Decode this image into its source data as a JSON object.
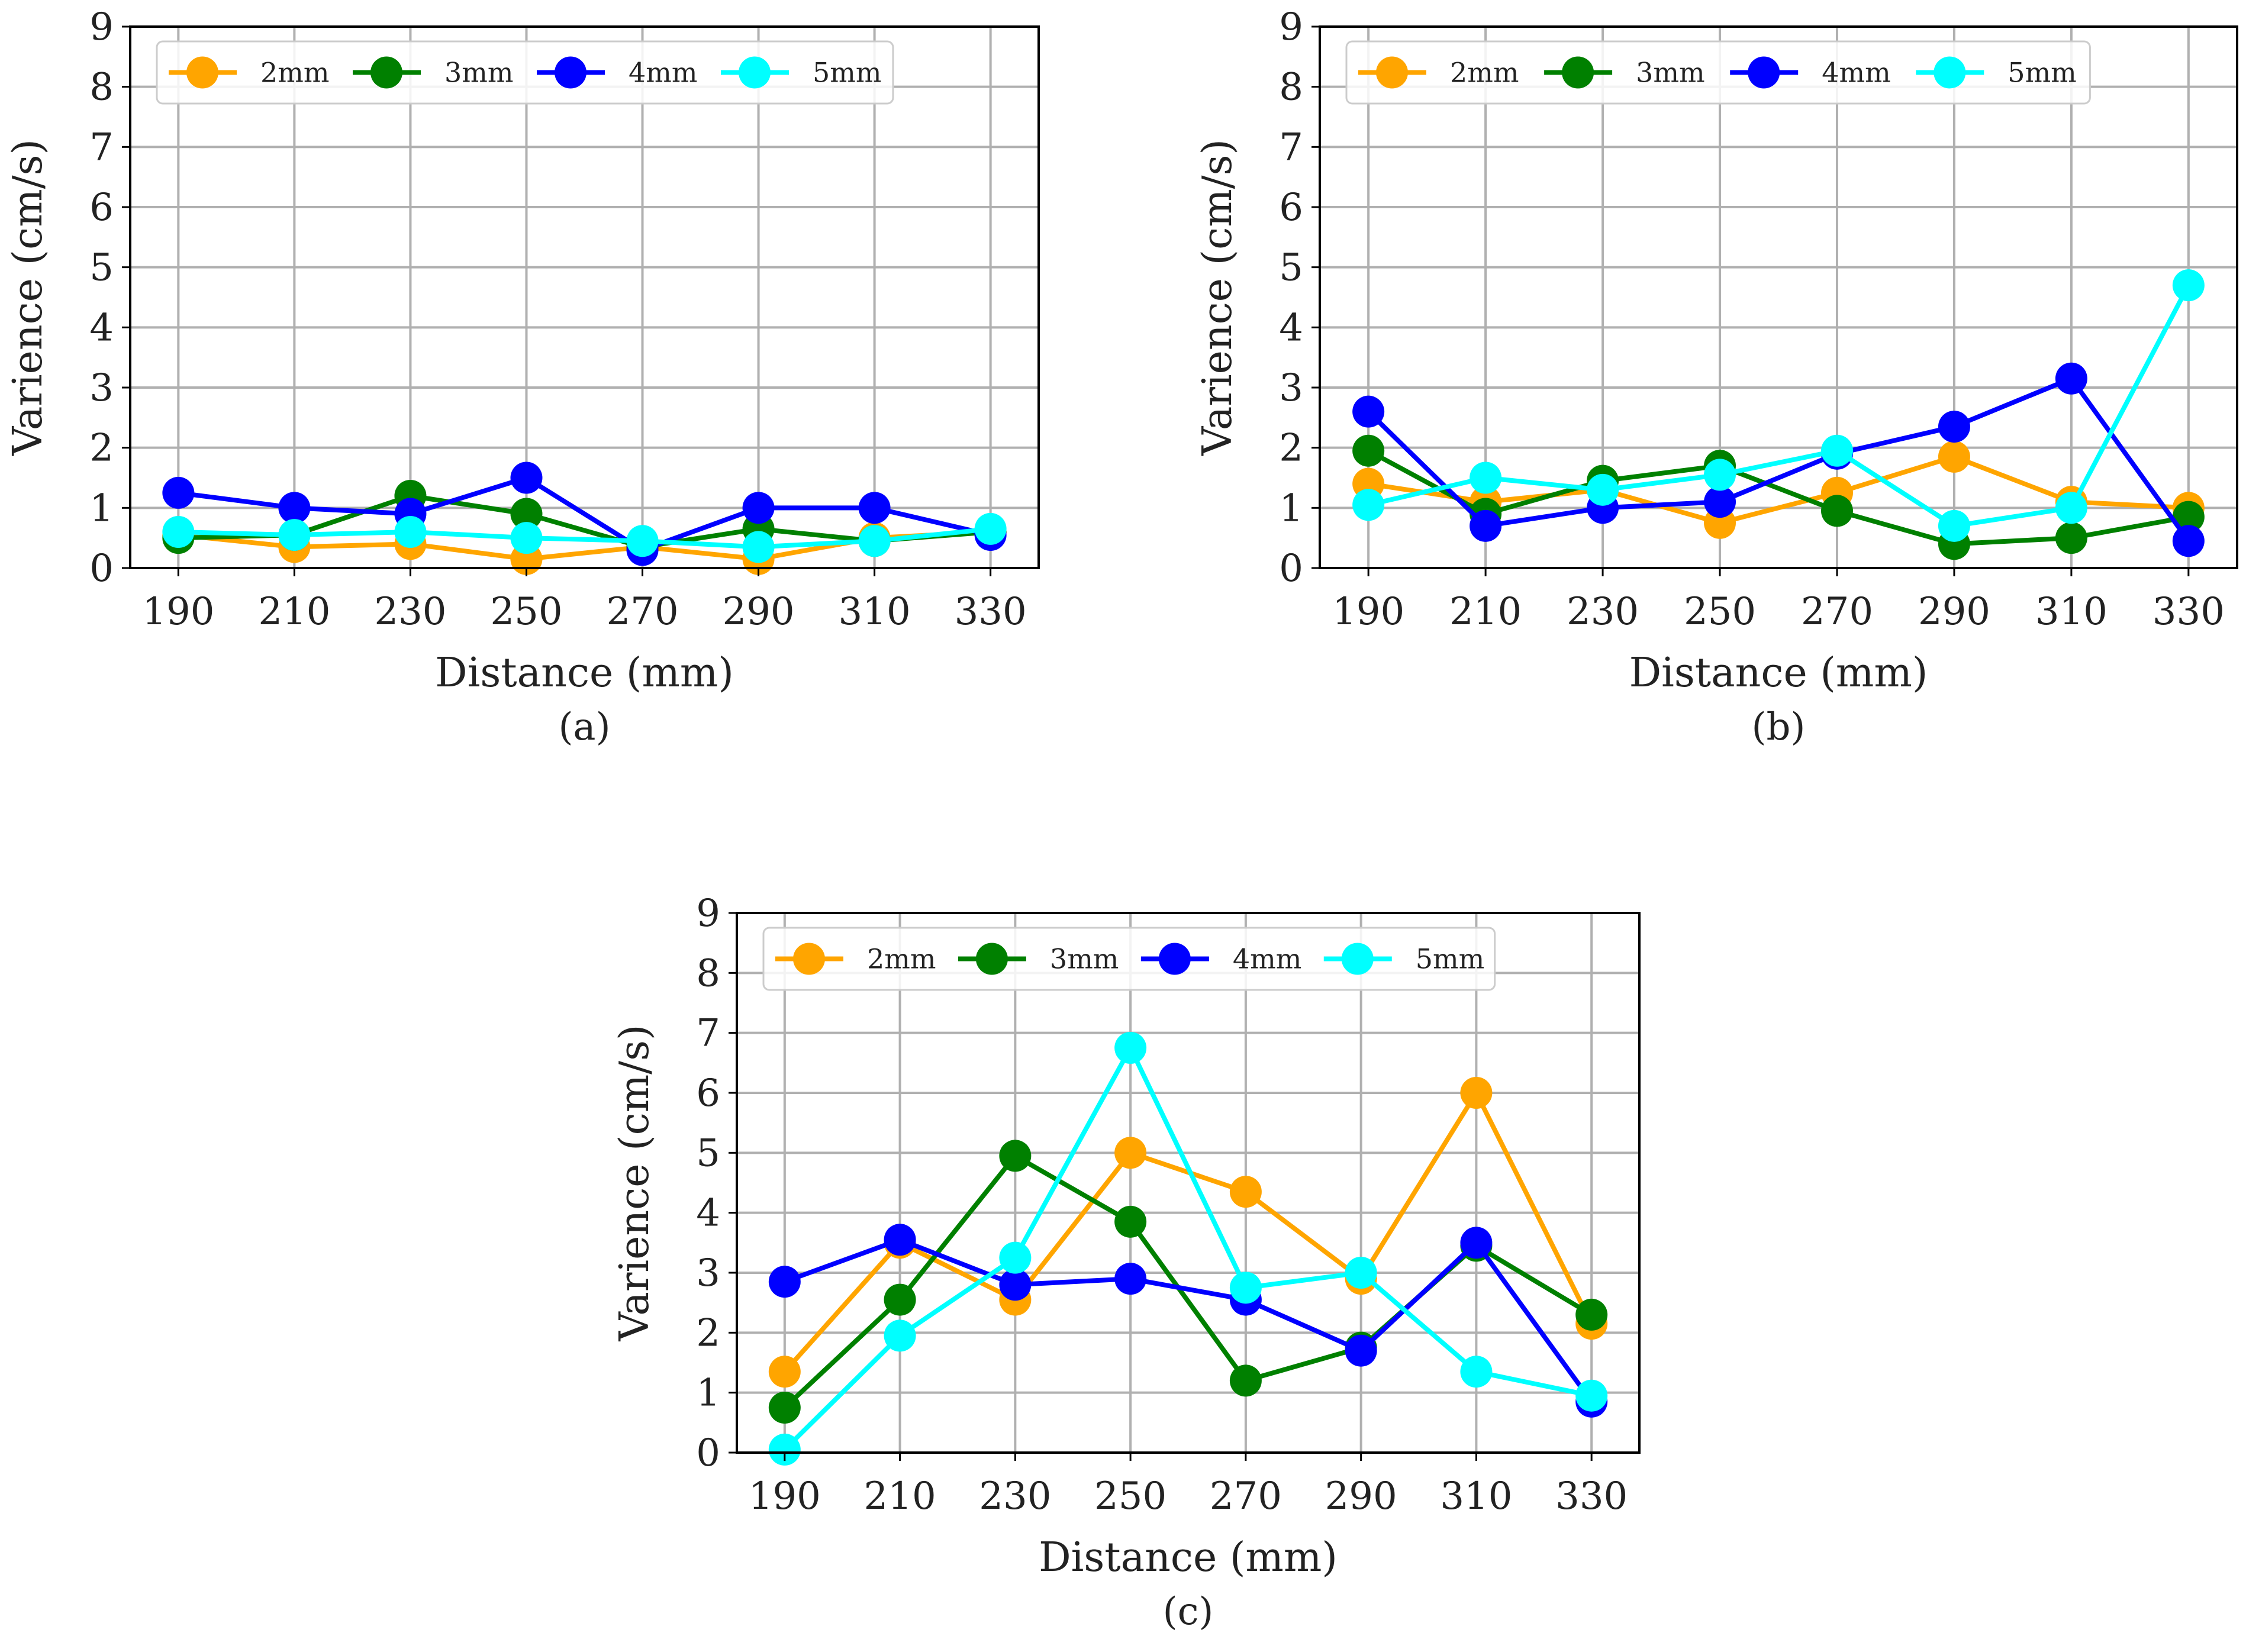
{
  "figure": {
    "panels": [
      {
        "id": "a",
        "caption": "(a)",
        "chart_data": {
          "type": "line",
          "title": "",
          "xlabel": "Distance (mm)",
          "ylabel": "Varience (cm/s)",
          "x": [
            190,
            210,
            230,
            250,
            270,
            290,
            310,
            330
          ],
          "x_tick_labels": [
            "190",
            "210",
            "230",
            "250",
            "270",
            "290",
            "310",
            "330"
          ],
          "y_tick_labels": [
            "0",
            "1",
            "2",
            "3",
            "4",
            "5",
            "6",
            "7",
            "8",
            "9"
          ],
          "ylim": [
            0,
            9
          ],
          "grid": true,
          "legend_position": "top, horizontal",
          "series": [
            {
              "name": "2mm",
              "color": "#FFA500",
              "values": [
                0.55,
                0.35,
                0.4,
                0.15,
                0.35,
                0.15,
                0.5,
                0.6
              ]
            },
            {
              "name": "3mm",
              "color": "#008000",
              "values": [
                0.5,
                0.55,
                1.2,
                0.9,
                0.35,
                0.65,
                0.45,
                0.6
              ]
            },
            {
              "name": "4mm",
              "color": "#0000FF",
              "values": [
                1.25,
                1.0,
                0.9,
                1.5,
                0.3,
                1.0,
                1.0,
                0.55
              ]
            },
            {
              "name": "5mm",
              "color": "#00FFFF",
              "values": [
                0.6,
                0.55,
                0.6,
                0.5,
                0.45,
                0.35,
                0.45,
                0.65
              ]
            }
          ]
        }
      },
      {
        "id": "b",
        "caption": "(b)",
        "chart_data": {
          "type": "line",
          "title": "",
          "xlabel": "Distance (mm)",
          "ylabel": "Varience (cm/s)",
          "x": [
            190,
            210,
            230,
            250,
            270,
            290,
            310,
            330
          ],
          "x_tick_labels": [
            "190",
            "210",
            "230",
            "250",
            "270",
            "290",
            "310",
            "330"
          ],
          "y_tick_labels": [
            "0",
            "1",
            "2",
            "3",
            "4",
            "5",
            "6",
            "7",
            "8",
            "9"
          ],
          "ylim": [
            0,
            9
          ],
          "grid": true,
          "legend_position": "top, horizontal",
          "series": [
            {
              "name": "2mm",
              "color": "#FFA500",
              "values": [
                1.4,
                1.1,
                1.3,
                0.75,
                1.25,
                1.85,
                1.1,
                1.0
              ]
            },
            {
              "name": "3mm",
              "color": "#008000",
              "values": [
                1.95,
                0.9,
                1.45,
                1.7,
                0.95,
                0.4,
                0.5,
                0.85
              ]
            },
            {
              "name": "4mm",
              "color": "#0000FF",
              "values": [
                2.6,
                0.7,
                1.0,
                1.1,
                1.9,
                2.35,
                3.15,
                0.45
              ]
            },
            {
              "name": "5mm",
              "color": "#00FFFF",
              "values": [
                1.05,
                1.5,
                1.3,
                1.55,
                1.95,
                0.7,
                1.0,
                4.7
              ]
            }
          ]
        }
      },
      {
        "id": "c",
        "caption": "(c)",
        "chart_data": {
          "type": "line",
          "title": "",
          "xlabel": "Distance (mm)",
          "ylabel": "Varience (cm/s)",
          "x": [
            190,
            210,
            230,
            250,
            270,
            290,
            310,
            330
          ],
          "x_tick_labels": [
            "190",
            "210",
            "230",
            "250",
            "270",
            "290",
            "310",
            "330"
          ],
          "y_tick_labels": [
            "0",
            "1",
            "2",
            "3",
            "4",
            "5",
            "6",
            "7",
            "8",
            "9"
          ],
          "ylim": [
            0,
            9
          ],
          "grid": true,
          "legend_position": "top, horizontal",
          "series": [
            {
              "name": "2mm",
              "color": "#FFA500",
              "values": [
                1.35,
                3.5,
                2.55,
                5.0,
                4.35,
                2.9,
                6.0,
                2.15
              ]
            },
            {
              "name": "3mm",
              "color": "#008000",
              "values": [
                0.75,
                2.55,
                4.95,
                3.85,
                1.2,
                1.75,
                3.45,
                2.3
              ]
            },
            {
              "name": "4mm",
              "color": "#0000FF",
              "values": [
                2.85,
                3.55,
                2.8,
                2.9,
                2.55,
                1.7,
                3.5,
                0.85
              ]
            },
            {
              "name": "5mm",
              "color": "#00FFFF",
              "values": [
                0.05,
                1.95,
                3.25,
                6.75,
                2.75,
                3.0,
                1.35,
                0.95
              ]
            }
          ]
        }
      }
    ]
  }
}
